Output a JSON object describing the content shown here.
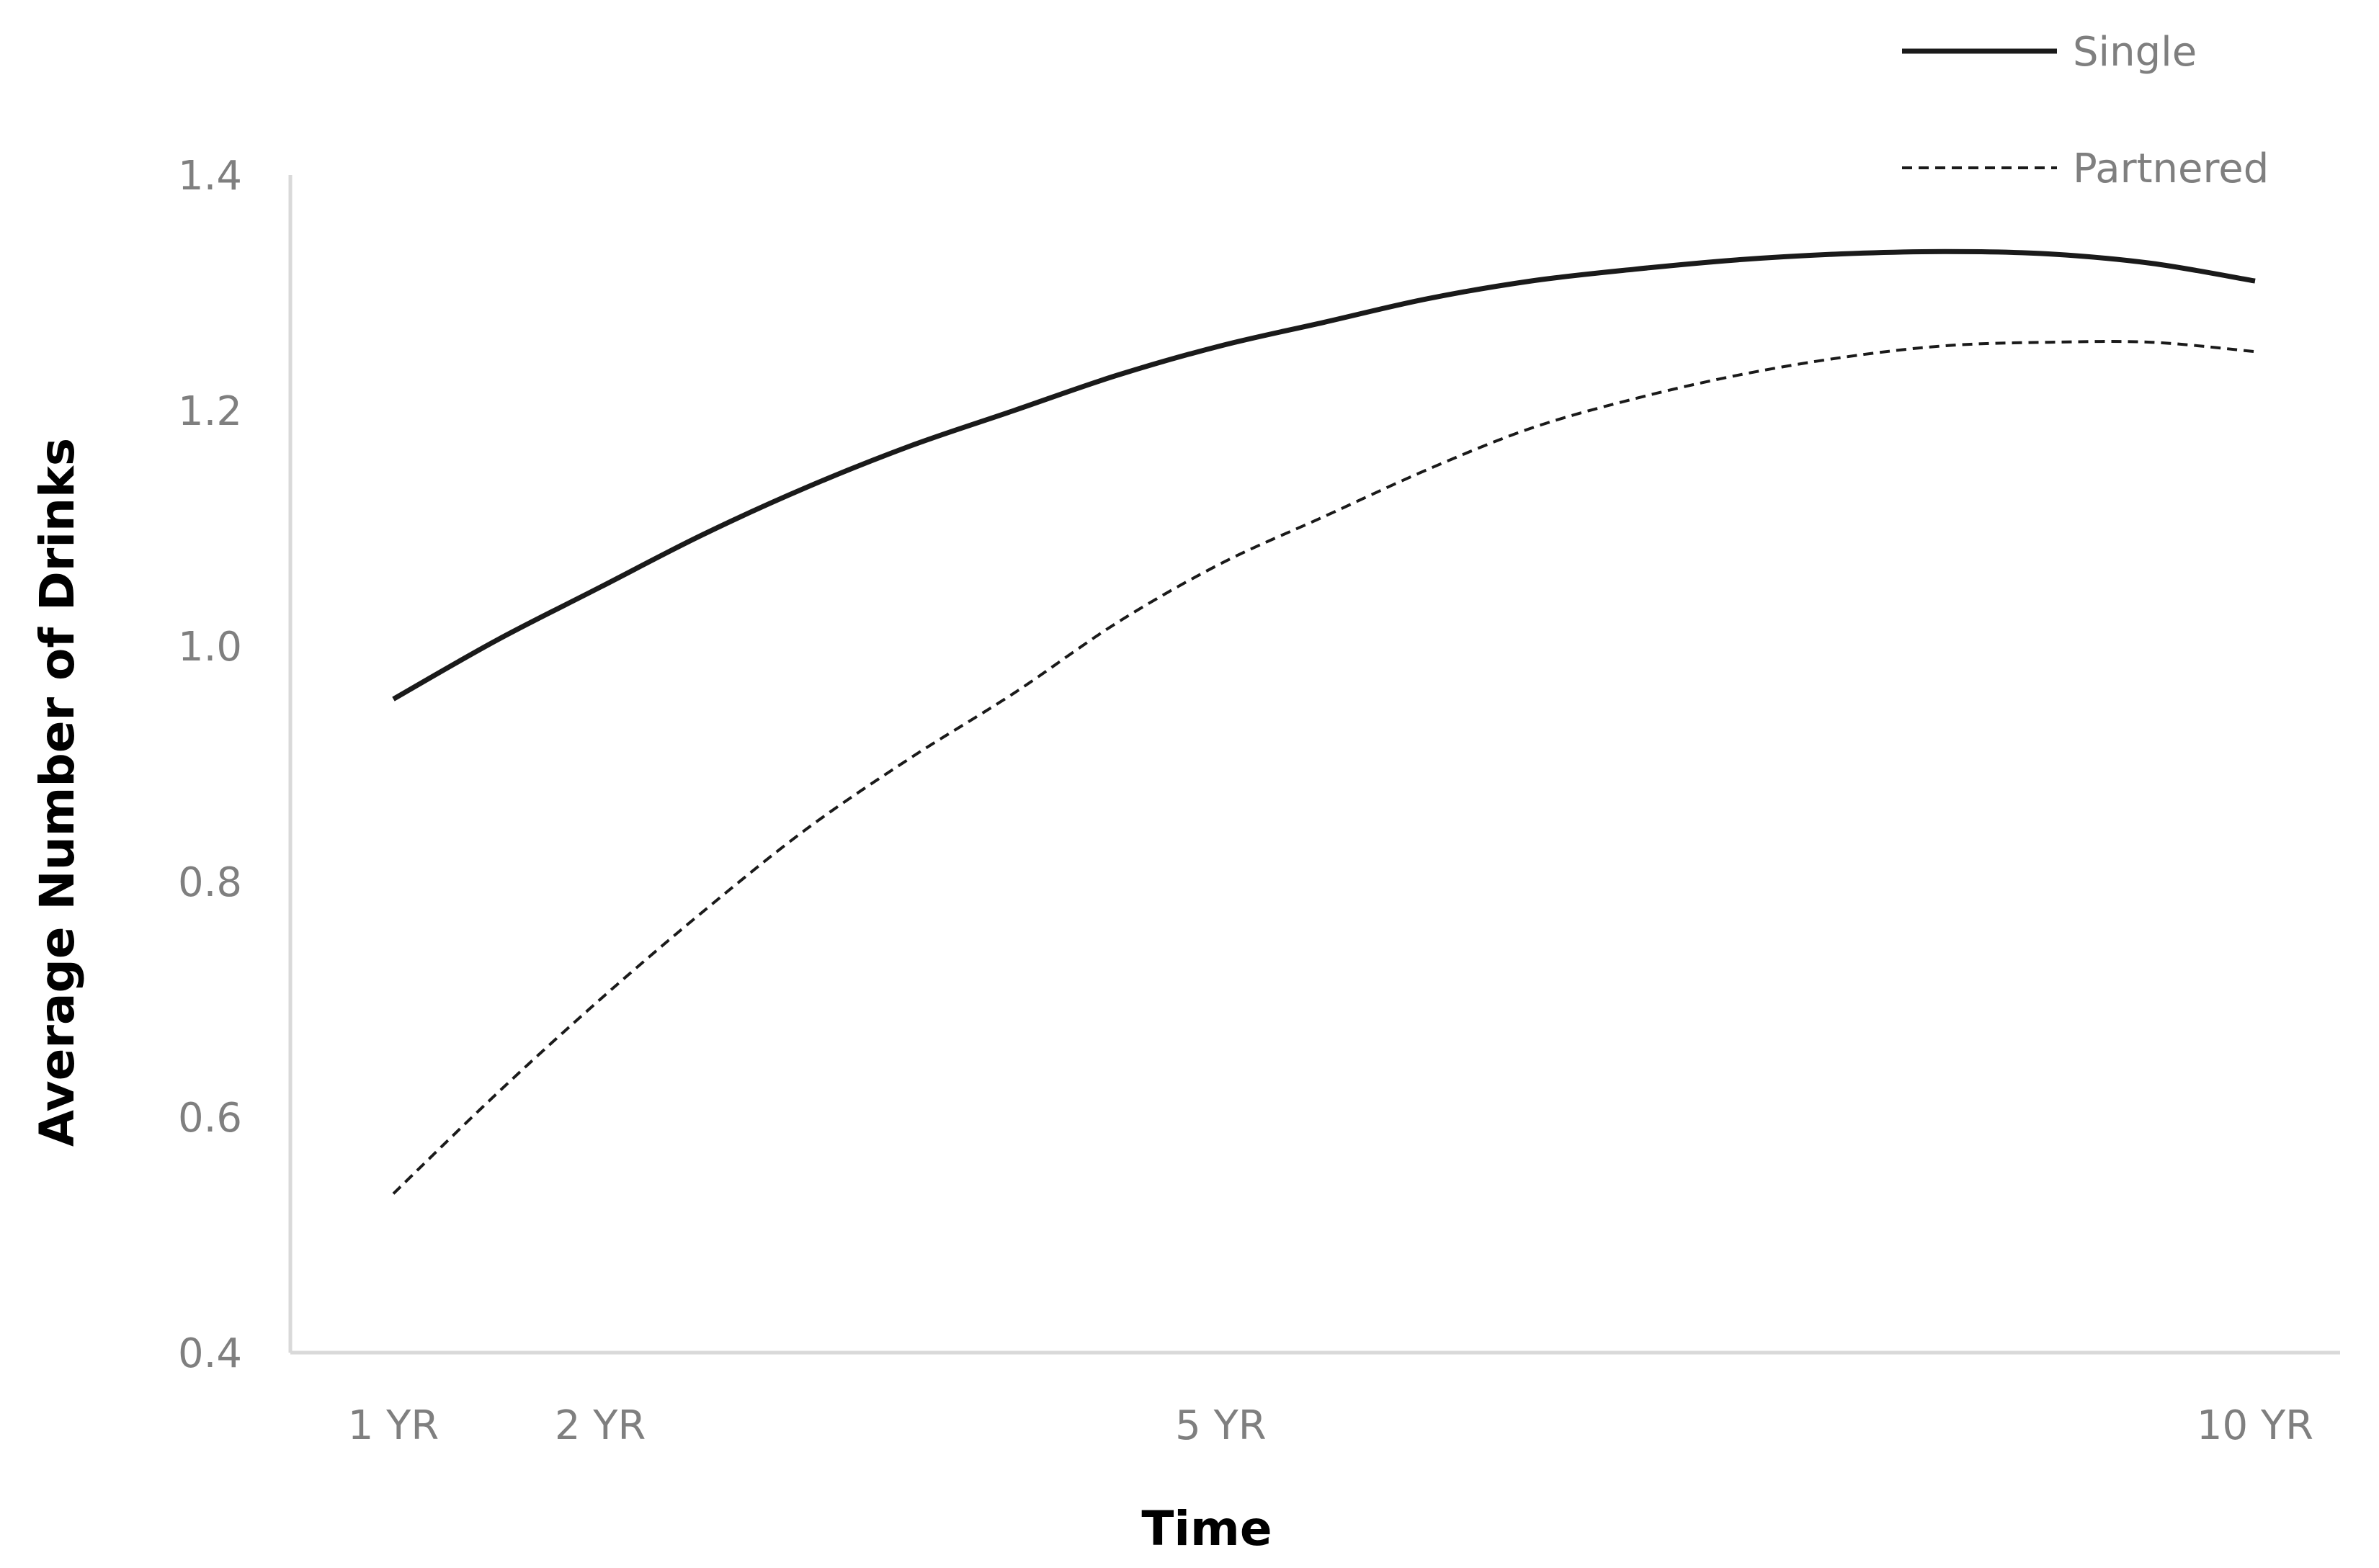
{
  "chart_data": {
    "type": "line",
    "title": "",
    "xlabel": "Time",
    "ylabel": "Average Number of Drinks",
    "ylim": [
      0.4,
      1.4
    ],
    "yticks": [
      "0.4",
      "0.6",
      "0.8",
      "1.0",
      "1.2",
      "1.4"
    ],
    "xlim": [
      1,
      10
    ],
    "xticks": [
      {
        "value": 1,
        "label": "1 YR"
      },
      {
        "value": 2,
        "label": "2 YR"
      },
      {
        "value": 5,
        "label": "5 YR"
      },
      {
        "value": 10,
        "label": "10 YR"
      }
    ],
    "grid": false,
    "legend": "top-right",
    "series": [
      {
        "name": "Single",
        "style": "solid",
        "color": "#1a1a1a",
        "x": [
          1,
          1.5,
          2,
          2.5,
          3,
          3.5,
          4,
          4.5,
          5,
          5.5,
          6,
          6.5,
          7,
          7.5,
          8,
          8.5,
          9,
          9.5,
          10
        ],
        "y": [
          0.955,
          1.005,
          1.05,
          1.095,
          1.135,
          1.17,
          1.2,
          1.23,
          1.255,
          1.275,
          1.295,
          1.31,
          1.32,
          1.328,
          1.333,
          1.335,
          1.333,
          1.325,
          1.31
        ]
      },
      {
        "name": "Partnered",
        "style": "dashed",
        "color": "#1a1a1a",
        "x": [
          1,
          1.5,
          2,
          2.5,
          3,
          3.5,
          4,
          4.5,
          5,
          5.5,
          6,
          6.5,
          7,
          7.5,
          8,
          8.5,
          9,
          9.5,
          10
        ],
        "y": [
          0.535,
          0.62,
          0.7,
          0.775,
          0.845,
          0.905,
          0.96,
          1.02,
          1.07,
          1.11,
          1.15,
          1.185,
          1.21,
          1.23,
          1.245,
          1.255,
          1.258,
          1.258,
          1.25
        ]
      }
    ]
  }
}
